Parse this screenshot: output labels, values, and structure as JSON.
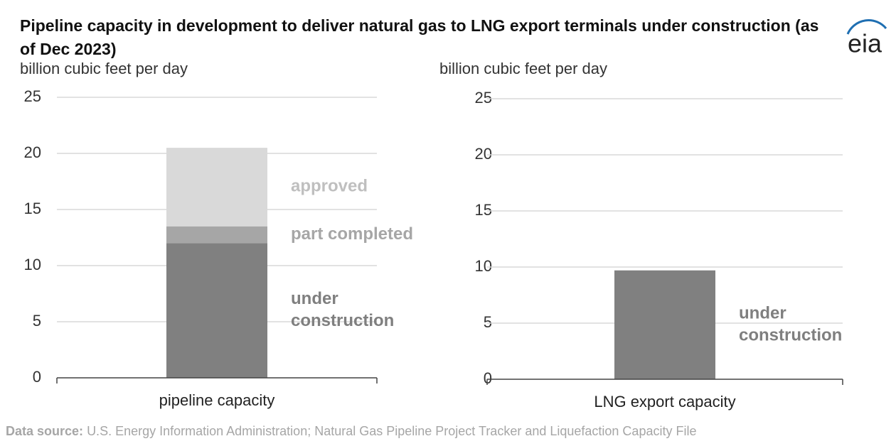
{
  "title": "Pipeline capacity in development to deliver natural gas to LNG export terminals under construction (as of Dec 2023)",
  "logo": "eia",
  "source": {
    "label": "Data source:",
    "text": "U.S. Energy Information Administration; Natural Gas Pipeline Project Tracker and Liquefaction Capacity File"
  },
  "chart_data": [
    {
      "type": "bar",
      "stacked": true,
      "ylabel": "billion cubic feet per day",
      "categories": [
        "pipeline capacity"
      ],
      "series": [
        {
          "name": "under construction",
          "color": "#808080",
          "label_color": "#7f7f7f",
          "values": [
            12.0
          ]
        },
        {
          "name": "part completed",
          "color": "#a6a6a6",
          "label_color": "#a6a6a6",
          "values": [
            1.5
          ]
        },
        {
          "name": "approved",
          "color": "#d9d9d9",
          "label_color": "#bfbfbf",
          "values": [
            7.0
          ]
        }
      ],
      "ylim": [
        0,
        25
      ],
      "yticks": [
        0,
        5,
        10,
        15,
        20,
        25
      ],
      "grid": true
    },
    {
      "type": "bar",
      "stacked": true,
      "ylabel": "billion cubic feet per day",
      "categories": [
        "LNG export capacity"
      ],
      "series": [
        {
          "name": "under construction",
          "color": "#808080",
          "label_color": "#7f7f7f",
          "values": [
            9.7
          ]
        }
      ],
      "ylim": [
        0,
        25
      ],
      "yticks": [
        0,
        5,
        10,
        15,
        20,
        25
      ],
      "grid": true
    }
  ]
}
